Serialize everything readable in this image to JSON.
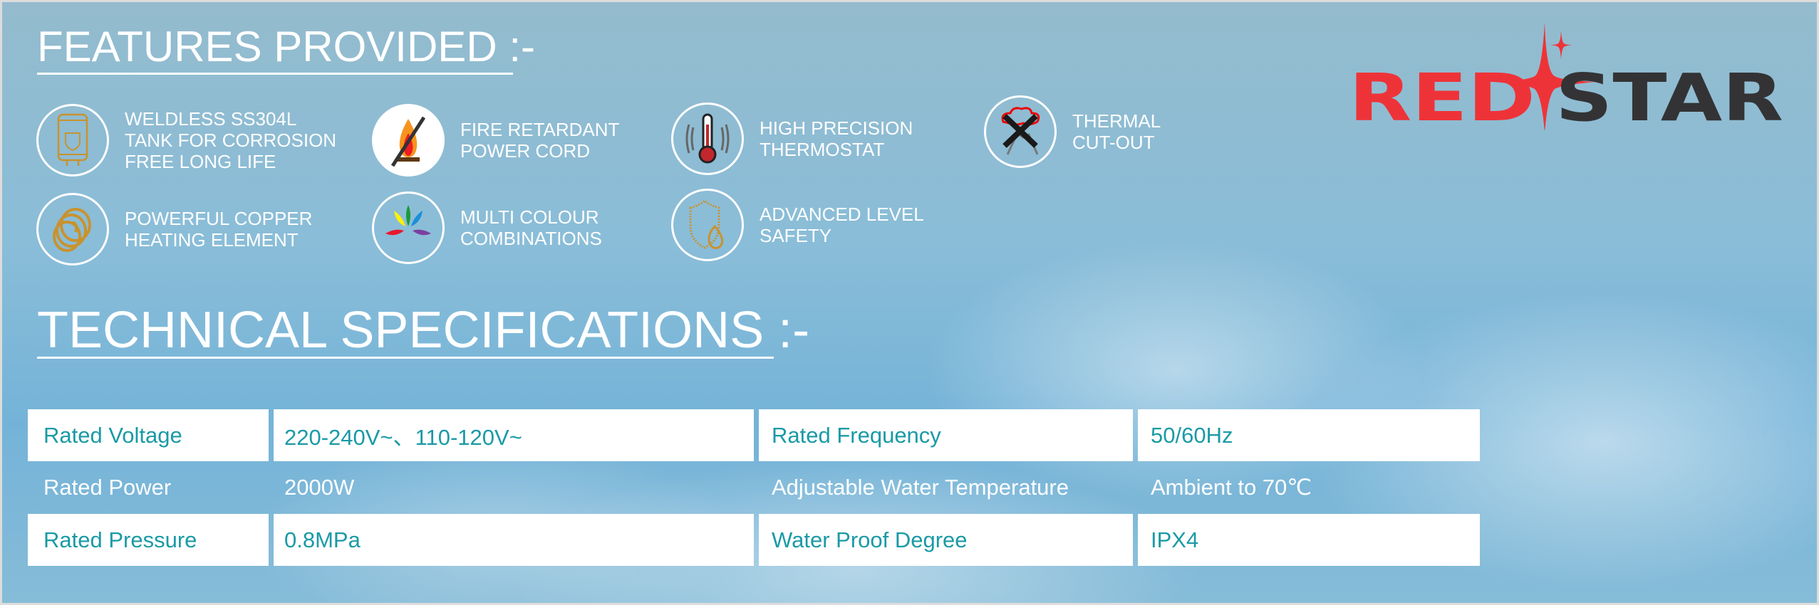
{
  "features": {
    "title": "FEATURES PROVIDED :-",
    "items": [
      {
        "icon": "water-tank-icon",
        "text": "WELDLESS SS304L\nTANK FOR CORROSION\nFREE LONG LIFE"
      },
      {
        "icon": "no-fire-icon",
        "text": "FIRE RETARDANT\nPOWER CORD"
      },
      {
        "icon": "thermometer-icon",
        "text": "HIGH PRECISION\nTHERMOSTAT"
      },
      {
        "icon": "thermal-cutout-icon",
        "text": "THERMAL\nCUT-OUT"
      },
      {
        "icon": "copper-coil-icon",
        "text": "POWERFUL COPPER\nHEATING ELEMENT"
      },
      {
        "icon": "colour-fan-icon",
        "text": "MULTI COLOUR\nCOMBINATIONS"
      },
      {
        "icon": "shield-flame-icon",
        "text": "ADVANCED  LEVEL\nSAFETY"
      }
    ]
  },
  "logo": {
    "text_red": "RED",
    "text_dark": "STAR",
    "colors": {
      "red": "#ee3338",
      "dark": "#333335"
    }
  },
  "specs": {
    "title": "TECHNICAL SPECIFICATIONS :-",
    "rows": [
      [
        "Rated Voltage",
        "220-240V~、110-120V~",
        "Rated Frequency",
        "50/60Hz"
      ],
      [
        "Rated Power",
        "2000W",
        "Adjustable Water Temperature",
        "Ambient to 70℃"
      ],
      [
        "Rated Pressure",
        "0.8MPa",
        "Water Proof Degree",
        "IPX4"
      ]
    ]
  },
  "colors": {
    "spec_text": "#1a9aa6",
    "copper": "#c8932f"
  }
}
